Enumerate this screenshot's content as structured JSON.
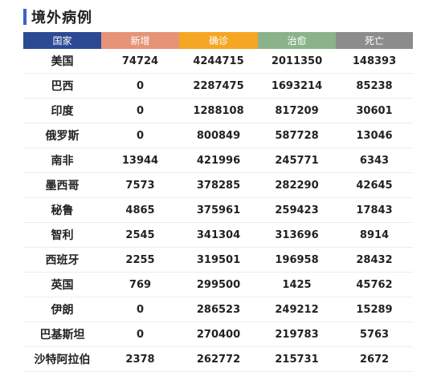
{
  "section": {
    "title": "境外病例"
  },
  "colors": {
    "title_accent": "#3a62c8",
    "country_header": "#2c4a94",
    "new_header": "#e59478",
    "confirmed_header": "#f5a623",
    "cured_header": "#8ab38a",
    "death_header": "#8c8c8c"
  },
  "table": {
    "headers": [
      "国家",
      "新增",
      "确诊",
      "治愈",
      "死亡"
    ],
    "rows": [
      {
        "country": "美国",
        "new": "74724",
        "confirmed": "4244715",
        "cured": "2011350",
        "deaths": "148393"
      },
      {
        "country": "巴西",
        "new": "0",
        "confirmed": "2287475",
        "cured": "1693214",
        "deaths": "85238"
      },
      {
        "country": "印度",
        "new": "0",
        "confirmed": "1288108",
        "cured": "817209",
        "deaths": "30601"
      },
      {
        "country": "俄罗斯",
        "new": "0",
        "confirmed": "800849",
        "cured": "587728",
        "deaths": "13046"
      },
      {
        "country": "南非",
        "new": "13944",
        "confirmed": "421996",
        "cured": "245771",
        "deaths": "6343"
      },
      {
        "country": "墨西哥",
        "new": "7573",
        "confirmed": "378285",
        "cured": "282290",
        "deaths": "42645"
      },
      {
        "country": "秘鲁",
        "new": "4865",
        "confirmed": "375961",
        "cured": "259423",
        "deaths": "17843"
      },
      {
        "country": "智利",
        "new": "2545",
        "confirmed": "341304",
        "cured": "313696",
        "deaths": "8914"
      },
      {
        "country": "西班牙",
        "new": "2255",
        "confirmed": "319501",
        "cured": "196958",
        "deaths": "28432"
      },
      {
        "country": "英国",
        "new": "769",
        "confirmed": "299500",
        "cured": "1425",
        "deaths": "45762"
      },
      {
        "country": "伊朗",
        "new": "0",
        "confirmed": "286523",
        "cured": "249212",
        "deaths": "15289"
      },
      {
        "country": "巴基斯坦",
        "new": "0",
        "confirmed": "270400",
        "cured": "219783",
        "deaths": "5763"
      },
      {
        "country": "沙特阿拉伯",
        "new": "2378",
        "confirmed": "262772",
        "cured": "215731",
        "deaths": "2672"
      }
    ]
  }
}
